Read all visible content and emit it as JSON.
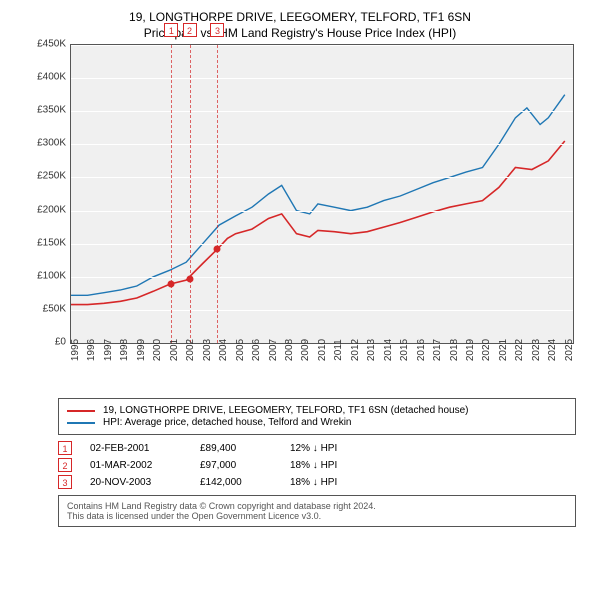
{
  "titles": {
    "line1": "19, LONGTHORPE DRIVE, LEEGOMERY, TELFORD, TF1 6SN",
    "line2": "Price paid vs. HM Land Registry's House Price Index (HPI)"
  },
  "chart": {
    "type": "line",
    "background_color": "#f0f0f0",
    "grid_color": "#ffffff",
    "axis_color": "#555",
    "xlim": [
      1995,
      2025.5
    ],
    "ylim": [
      0,
      450000
    ],
    "ytick_step": 50000,
    "yticks": [
      "£0",
      "£50K",
      "£100K",
      "£150K",
      "£200K",
      "£250K",
      "£300K",
      "£350K",
      "£400K",
      "£450K"
    ],
    "xticks": [
      "1995",
      "1996",
      "1997",
      "1998",
      "1999",
      "2000",
      "2001",
      "2002",
      "2003",
      "2004",
      "2005",
      "2006",
      "2007",
      "2008",
      "2009",
      "2010",
      "2011",
      "2012",
      "2013",
      "2014",
      "2015",
      "2016",
      "2017",
      "2018",
      "2019",
      "2020",
      "2021",
      "2022",
      "2023",
      "2024",
      "2025"
    ],
    "tick_fontsize": 10,
    "series": [
      {
        "name": "property",
        "label": "19, LONGTHORPE DRIVE, LEEGOMERY, TELFORD, TF1 6SN (detached house)",
        "color": "#d62728",
        "line_width": 1.6,
        "x": [
          1995,
          1996,
          1997,
          1998,
          1999,
          2000,
          2001,
          2002,
          2003,
          2003.9,
          2004.5,
          2005,
          2006,
          2007,
          2007.8,
          2008.7,
          2009.5,
          2010,
          2011,
          2012,
          2013,
          2014,
          2015,
          2016,
          2017,
          2018,
          2019,
          2020,
          2021,
          2022,
          2023,
          2024,
          2025
        ],
        "y": [
          58000,
          58000,
          60000,
          63000,
          68000,
          78000,
          89000,
          95000,
          120000,
          142000,
          158000,
          165000,
          172000,
          188000,
          195000,
          165000,
          160000,
          170000,
          168000,
          165000,
          168000,
          175000,
          182000,
          190000,
          198000,
          205000,
          210000,
          215000,
          235000,
          265000,
          262000,
          275000,
          305000
        ]
      },
      {
        "name": "hpi",
        "label": "HPI: Average price, detached house, Telford and Wrekin",
        "color": "#1f77b4",
        "line_width": 1.4,
        "x": [
          1995,
          1996,
          1997,
          1998,
          1999,
          2000,
          2001,
          2002,
          2003,
          2004,
          2005,
          2006,
          2007,
          2007.8,
          2008.7,
          2009.5,
          2010,
          2011,
          2012,
          2013,
          2014,
          2015,
          2016,
          2017,
          2018,
          2019,
          2020,
          2021,
          2022,
          2022.7,
          2023.5,
          2024,
          2025
        ],
        "y": [
          72000,
          72000,
          76000,
          80000,
          86000,
          100000,
          110000,
          122000,
          150000,
          178000,
          192000,
          205000,
          225000,
          238000,
          200000,
          195000,
          210000,
          205000,
          200000,
          205000,
          215000,
          222000,
          232000,
          242000,
          250000,
          258000,
          265000,
          300000,
          340000,
          355000,
          330000,
          340000,
          375000
        ]
      }
    ],
    "markers": [
      {
        "n": "1",
        "year": 2001.1
      },
      {
        "n": "2",
        "year": 2002.2
      },
      {
        "n": "3",
        "year": 2003.9
      }
    ],
    "sale_points": [
      {
        "year": 2001.1,
        "price": 89400
      },
      {
        "year": 2002.2,
        "price": 97000
      },
      {
        "year": 2003.9,
        "price": 142000
      }
    ]
  },
  "legend": {
    "series1": "19, LONGTHORPE DRIVE, LEEGOMERY, TELFORD, TF1 6SN (detached house)",
    "series2": "HPI: Average price, detached house, Telford and Wrekin"
  },
  "events": [
    {
      "n": "1",
      "date": "02-FEB-2001",
      "price": "£89,400",
      "delta": "12% ↓ HPI"
    },
    {
      "n": "2",
      "date": "01-MAR-2002",
      "price": "£97,000",
      "delta": "18% ↓ HPI"
    },
    {
      "n": "3",
      "date": "20-NOV-2003",
      "price": "£142,000",
      "delta": "18% ↓ HPI"
    }
  ],
  "attribution": {
    "line1": "Contains HM Land Registry data © Crown copyright and database right 2024.",
    "line2": "This data is licensed under the Open Government Licence v3.0."
  }
}
